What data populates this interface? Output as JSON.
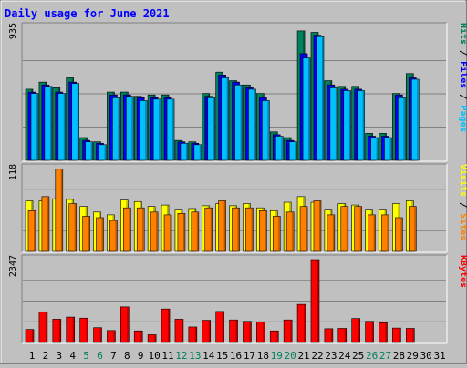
{
  "chart_data": {
    "type": "bar",
    "title": "Daily usage for June 2021",
    "categories": [
      "1",
      "2",
      "3",
      "4",
      "5",
      "6",
      "7",
      "8",
      "9",
      "10",
      "11",
      "12",
      "13",
      "14",
      "15",
      "16",
      "17",
      "18",
      "19",
      "20",
      "21",
      "22",
      "23",
      "24",
      "25",
      "26",
      "27",
      "28",
      "29",
      "30",
      "31"
    ],
    "weekend_days": [
      "5",
      "6",
      "12",
      "13",
      "19",
      "20",
      "26",
      "27"
    ],
    "colors": {
      "title": "#0000ff",
      "hits": "#00805c",
      "files": "#0000ff",
      "pages": "#00c0ff",
      "visits": "#ffff00",
      "sites": "#ff8000",
      "kbytes": "#ff0000",
      "weekday_label": "#000000",
      "weekend_label": "#00805c"
    },
    "panels": [
      {
        "id": "hits-files-pages",
        "max_label": "935",
        "ylim": [
          0,
          935
        ],
        "legend": [
          {
            "text": "Pages",
            "color": "#00c0ff"
          },
          {
            "text": " / ",
            "color": "#000000"
          },
          {
            "text": "Files",
            "color": "#0000ff"
          },
          {
            "text": " / ",
            "color": "#000000"
          },
          {
            "text": "Hits",
            "color": "#00805c"
          }
        ],
        "series": [
          {
            "name": "Hits",
            "color": "#00805c",
            "values": [
              500,
              550,
              510,
              580,
              160,
              130,
              480,
              480,
              450,
              460,
              460,
              140,
              130,
              470,
              620,
              560,
              530,
              470,
              200,
              160,
              910,
              900,
              560,
              520,
              520,
              190,
              190,
              470,
              610,
              0,
              0
            ]
          },
          {
            "name": "Files",
            "color": "#0000ff",
            "values": [
              480,
              530,
              480,
              550,
              140,
              120,
              460,
              460,
              440,
              440,
              440,
              130,
              120,
              450,
              600,
              550,
              510,
              440,
              180,
              140,
              750,
              880,
              530,
              500,
              500,
              170,
              170,
              460,
              580,
              0,
              0
            ]
          },
          {
            "name": "Pages",
            "color": "#00c0ff",
            "values": [
              470,
              520,
              470,
              540,
              130,
              110,
              440,
              450,
              420,
              430,
              430,
              120,
              110,
              440,
              580,
              530,
              500,
              420,
              170,
              130,
              720,
              870,
              510,
              490,
              490,
              160,
              160,
              440,
              570,
              0,
              0
            ]
          }
        ]
      },
      {
        "id": "visits-sites",
        "max_label": "118",
        "ylim": [
          0,
          118
        ],
        "legend": [
          {
            "text": "Sites",
            "color": "#ff8000"
          },
          {
            "text": " / ",
            "color": "#000000"
          },
          {
            "text": "Visits",
            "color": "#ffff00"
          }
        ],
        "series": [
          {
            "name": "Visits",
            "color": "#ffff00",
            "values": [
              72,
              72,
              75,
              74,
              64,
              56,
              52,
              73,
              71,
              64,
              66,
              60,
              61,
              65,
              68,
              65,
              68,
              62,
              58,
              70,
              78,
              70,
              60,
              68,
              66,
              60,
              60,
              68,
              72,
              0,
              0
            ]
          },
          {
            "name": "Sites",
            "color": "#ff8000",
            "values": [
              58,
              78,
              117,
              68,
              50,
              48,
              44,
              62,
              62,
              56,
              52,
              54,
              56,
              62,
              72,
              62,
              62,
              58,
              50,
              56,
              64,
              72,
              52,
              64,
              64,
              52,
              52,
              48,
              64,
              0,
              0
            ]
          }
        ]
      },
      {
        "id": "kbytes",
        "max_label": "2347",
        "ylim": [
          0,
          2347
        ],
        "legend": [
          {
            "text": "KBytes",
            "color": "#ff0000"
          }
        ],
        "series": [
          {
            "name": "KBytes",
            "color": "#ff0000",
            "values": [
              370,
              870,
              660,
              720,
              690,
              420,
              340,
              1010,
              330,
              220,
              950,
              660,
              440,
              630,
              880,
              640,
              600,
              580,
              330,
              640,
              1080,
              2347,
              390,
              400,
              680,
              600,
              560,
              410,
              400,
              0,
              0
            ]
          }
        ]
      }
    ]
  }
}
